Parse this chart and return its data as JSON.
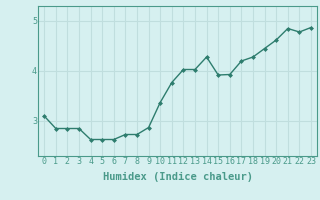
{
  "xlabel": "Humidex (Indice chaleur)",
  "ylabel": "",
  "x_values": [
    0,
    1,
    2,
    3,
    4,
    5,
    6,
    7,
    8,
    9,
    10,
    11,
    12,
    13,
    14,
    15,
    16,
    17,
    18,
    19,
    20,
    21,
    22,
    23
  ],
  "y_values": [
    3.1,
    2.85,
    2.85,
    2.85,
    2.63,
    2.63,
    2.63,
    2.73,
    2.73,
    2.87,
    3.37,
    3.77,
    4.03,
    4.03,
    4.28,
    3.92,
    3.93,
    4.2,
    4.28,
    4.45,
    4.62,
    4.85,
    4.78,
    4.87
  ],
  "line_color": "#2e7d6e",
  "marker": "D",
  "marker_size": 2.0,
  "line_width": 1.0,
  "background_color": "#d6f0f0",
  "grid_color": "#c0dede",
  "ylim": [
    2.3,
    5.3
  ],
  "yticks": [
    3,
    4,
    5
  ],
  "xtick_labels": [
    "0",
    "1",
    "2",
    "3",
    "4",
    "5",
    "6",
    "7",
    "8",
    "9",
    "10",
    "11",
    "12",
    "13",
    "14",
    "15",
    "16",
    "17",
    "18",
    "19",
    "20",
    "21",
    "22",
    "23"
  ],
  "xlabel_fontsize": 7.5,
  "tick_fontsize": 6.0,
  "spine_color": "#4a9a8a",
  "axis_color": "#4a9a8a"
}
